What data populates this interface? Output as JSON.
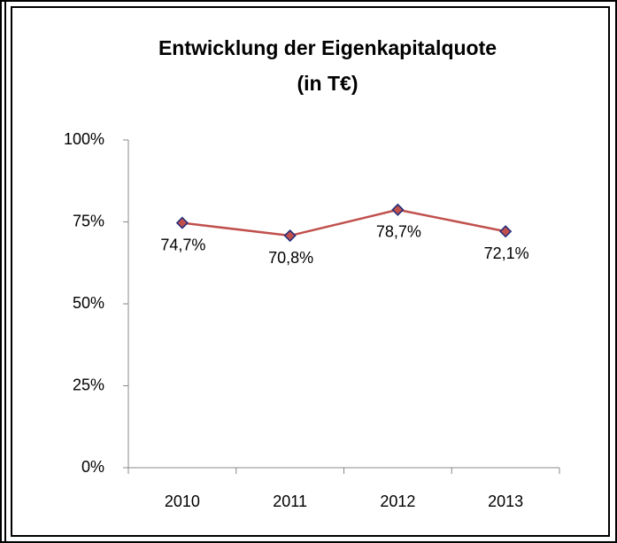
{
  "chart_data": {
    "type": "line",
    "title": [
      "Entwicklung der Eigenkapitalquote",
      "(in T€)"
    ],
    "categories": [
      "2010",
      "2011",
      "2012",
      "2013"
    ],
    "series": [
      {
        "color": "#c0504d",
        "marker_edge": "#1f2a7a",
        "values": [
          74.7,
          70.8,
          78.7,
          72.1
        ],
        "value_labels": [
          "74,7%",
          "70,8%",
          "78,7%",
          "72,1%"
        ]
      }
    ],
    "ylim": [
      0,
      100
    ],
    "yticks": [
      {
        "value": 0,
        "label": "0%"
      },
      {
        "value": 25,
        "label": "25%"
      },
      {
        "value": 50,
        "label": "50%"
      },
      {
        "value": 75,
        "label": "75%"
      },
      {
        "value": 100,
        "label": "100%"
      }
    ],
    "grid": false
  }
}
